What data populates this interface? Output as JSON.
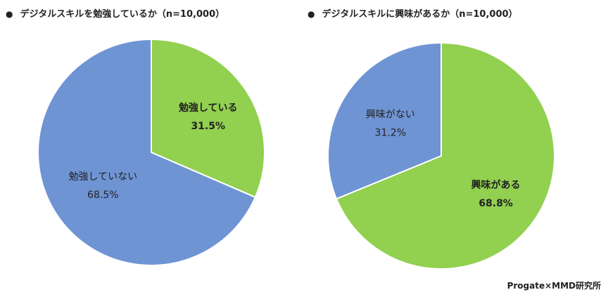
{
  "chart_data": [
    {
      "type": "pie",
      "title": "デジタルスキルを勉強しているか（n=10,000）",
      "slices": [
        {
          "label": "勉強している",
          "value": 31.5,
          "display": "31.5%",
          "color": "#92d050",
          "emphasis": true
        },
        {
          "label": "勉強していない",
          "value": 68.5,
          "display": "68.5%",
          "color": "#6f94d4",
          "emphasis": false
        }
      ]
    },
    {
      "type": "pie",
      "title": "デジタルスキルに興味があるか（n=10,000）",
      "slices": [
        {
          "label": "興味がある",
          "value": 68.8,
          "display": "68.8%",
          "color": "#92d050",
          "emphasis": true
        },
        {
          "label": "興味がない",
          "value": 31.2,
          "display": "31.2%",
          "color": "#6f94d4",
          "emphasis": false
        }
      ]
    }
  ],
  "bullet": "●",
  "source": "Progate×MMD研究所"
}
